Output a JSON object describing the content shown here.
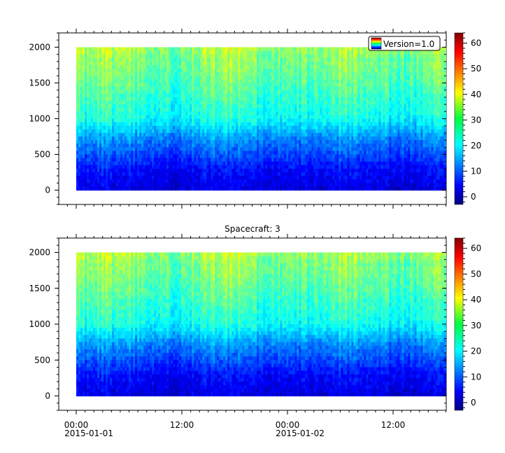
{
  "chart_data": [
    {
      "type": "heatmap",
      "title": "",
      "xlabel": "",
      "ylabel": "",
      "ylim": [
        -200,
        2200
      ],
      "y_range_data": [
        0,
        2000
      ],
      "y_ticks": [
        0,
        500,
        1000,
        1500,
        2000
      ],
      "x_ticks": [
        {
          "time": "00:00",
          "date": "2015-01-01"
        },
        {
          "time": "12:00",
          "date": ""
        },
        {
          "time": "00:00",
          "date": "2015-01-02"
        },
        {
          "time": "12:00",
          "date": ""
        }
      ],
      "x_range_hours": [
        0,
        42
      ],
      "legend": {
        "label": "Version=1.0",
        "placement": "top-right"
      },
      "colorbar": {
        "min": -3,
        "max": 64,
        "ticks": [
          0,
          10,
          20,
          30,
          40,
          50,
          60
        ]
      },
      "colormap": "jet",
      "description_values": {
        "low_y_level": 5,
        "mid_y_level": 15,
        "high_y_level": 28,
        "top_level": 33
      }
    },
    {
      "type": "heatmap",
      "title": "Spacecraft: 3",
      "xlabel": "",
      "ylabel": "",
      "ylim": [
        -200,
        2200
      ],
      "y_range_data": [
        0,
        2000
      ],
      "y_ticks": [
        0,
        500,
        1000,
        1500,
        2000
      ],
      "x_ticks": [
        {
          "time": "00:00",
          "date": "2015-01-01"
        },
        {
          "time": "12:00",
          "date": ""
        },
        {
          "time": "00:00",
          "date": "2015-01-02"
        },
        {
          "time": "12:00",
          "date": ""
        }
      ],
      "x_range_hours": [
        0,
        42
      ],
      "colorbar": {
        "min": -3,
        "max": 64,
        "ticks": [
          0,
          10,
          20,
          30,
          40,
          50,
          60
        ]
      },
      "colormap": "jet"
    }
  ],
  "panels": [
    {
      "title": "",
      "legend_label": "Version=1.0"
    },
    {
      "title": "Spacecraft: 3",
      "legend_label": ""
    }
  ],
  "x_axis_labels": {
    "t0": "00:00",
    "d0": "2015-01-01",
    "t1": "12:00",
    "t2": "00:00",
    "d2": "2015-01-02",
    "t3": "12:00"
  },
  "y_tick_labels": [
    "0",
    "500",
    "1000",
    "1500",
    "2000"
  ],
  "colorbar_tick_labels": [
    "0",
    "10",
    "20",
    "30",
    "40",
    "50",
    "60"
  ]
}
